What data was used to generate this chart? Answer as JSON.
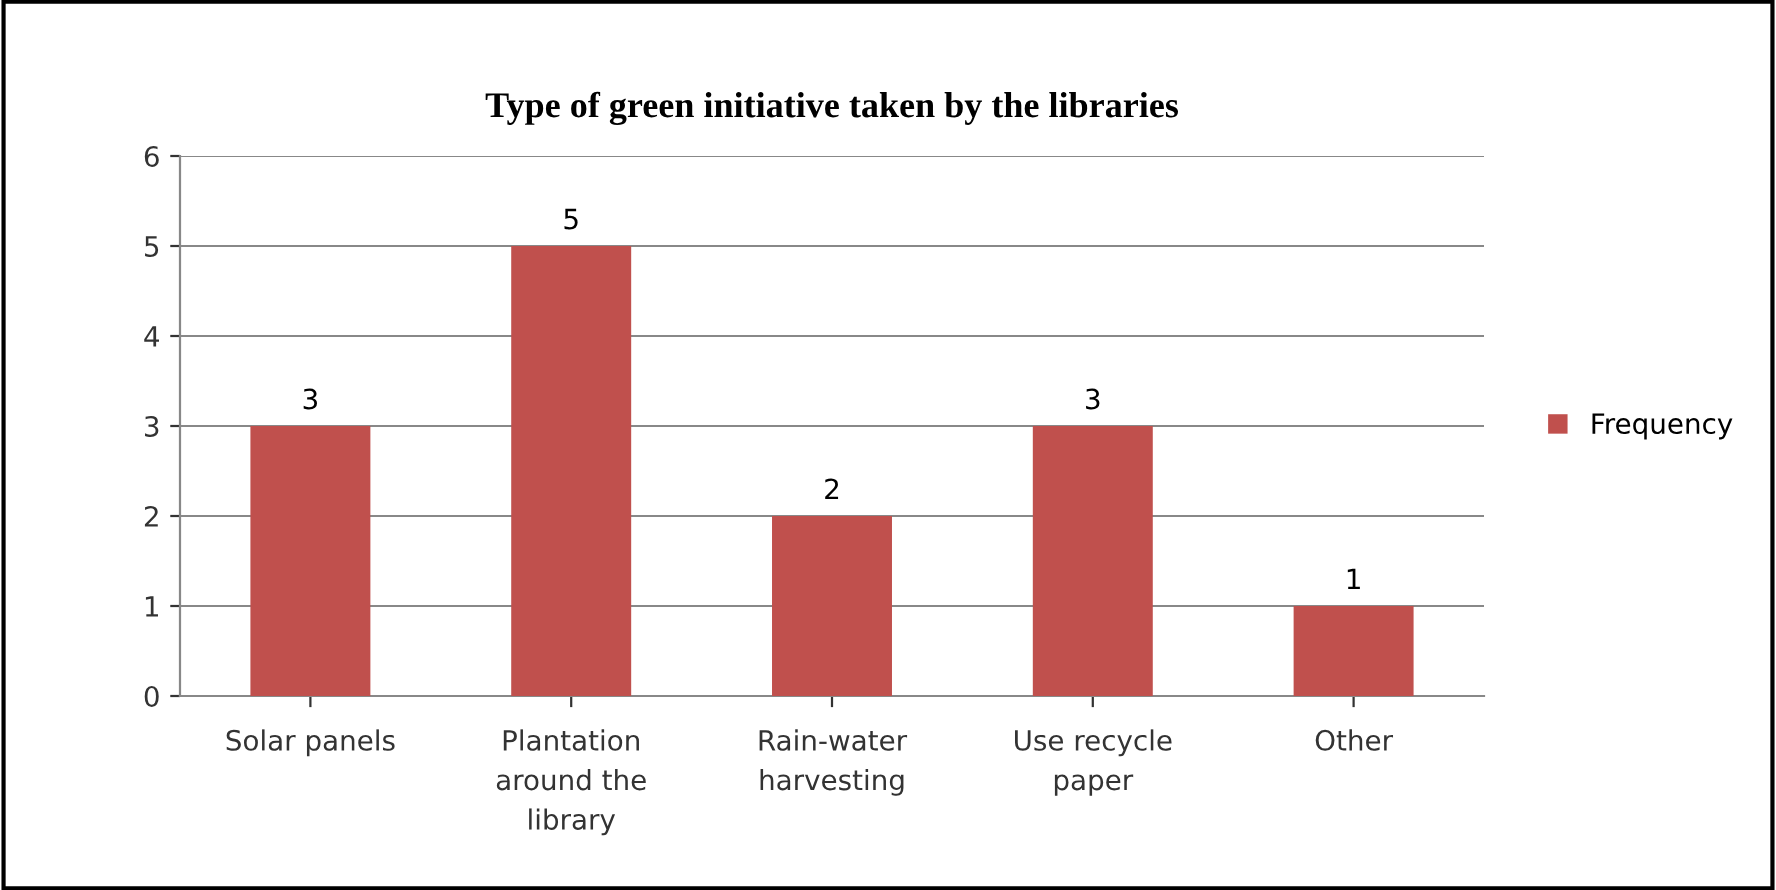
{
  "chart_data": {
    "type": "bar",
    "title": "Type of green initiative taken by the libraries",
    "categories": [
      "Solar panels",
      "Plantation\naround the\nlibrary",
      "Rain-water\nharvesting",
      "Use recycle\npaper",
      "Other"
    ],
    "series": [
      {
        "name": "Frequency",
        "color": "#c0504d",
        "values": [
          3,
          5,
          2,
          3,
          1
        ]
      }
    ],
    "ylim": [
      0,
      6
    ],
    "yticks": [
      0,
      1,
      2,
      3,
      4,
      5,
      6
    ],
    "grid": "y",
    "legend": "right",
    "data_labels": true
  }
}
